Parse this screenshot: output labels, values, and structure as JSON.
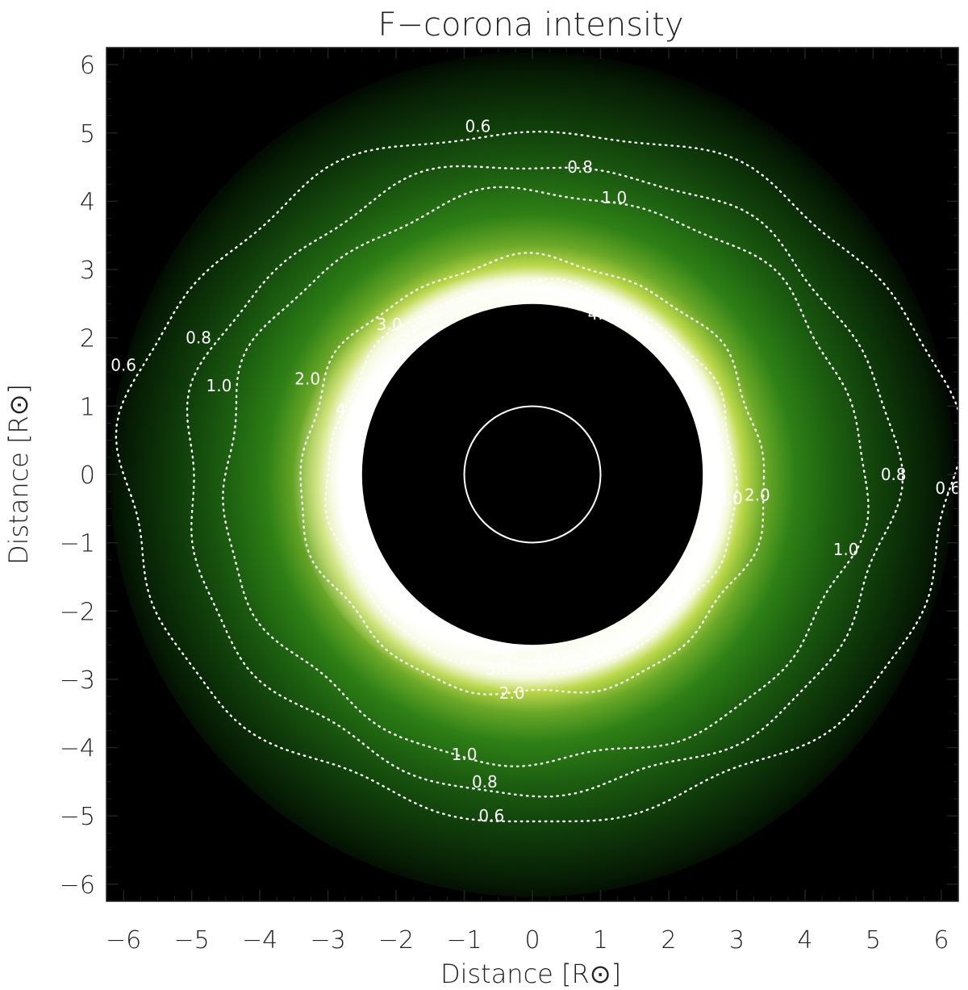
{
  "chart_data": {
    "type": "heatmap",
    "title": "F−corona intensity",
    "xlabel": "Distance [R⊙]",
    "ylabel": "Distance [R⊙]",
    "xlim": [
      -6.25,
      6.25
    ],
    "ylim": [
      -6.25,
      6.25
    ],
    "xticks": [
      -6,
      -5,
      -4,
      -3,
      -2,
      -1,
      0,
      1,
      2,
      3,
      4,
      5,
      6
    ],
    "yticks": [
      -6,
      -5,
      -4,
      -3,
      -2,
      -1,
      0,
      1,
      2,
      3,
      4,
      5,
      6
    ],
    "xtick_labels": [
      "−6",
      "−5",
      "−4",
      "−3",
      "−2",
      "−1",
      "0",
      "1",
      "2",
      "3",
      "4",
      "5",
      "6"
    ],
    "ytick_labels": [
      "−6",
      "−5",
      "−4",
      "−3",
      "−2",
      "−1",
      "0",
      "1",
      "2",
      "3",
      "4",
      "5",
      "6"
    ],
    "occulter_radius": 2.5,
    "field_of_view_radius": 6.2,
    "solar_disk_radius": 1.0,
    "colormap": [
      "#000000",
      "#0a3a06",
      "#1f6a12",
      "#4a9a1e",
      "#a8c83a",
      "#e8f0b0",
      "#ffffff"
    ],
    "contours": [
      {
        "level": 0.6,
        "label": "0.6",
        "label_positions": [
          [
            -0.8,
            5.1
          ],
          [
            -6.0,
            1.6
          ],
          [
            6.1,
            -0.2
          ],
          [
            -0.6,
            -5.0
          ]
        ],
        "outer_rx": 6.1,
        "outer_ry": 5.05,
        "cx": 0.1,
        "cy": 0.0
      },
      {
        "level": 0.8,
        "label": "0.8",
        "label_positions": [
          [
            0.7,
            4.5
          ],
          [
            -4.9,
            2.0
          ],
          [
            5.3,
            0.0
          ],
          [
            -0.7,
            -4.5
          ]
        ],
        "outer_rx": 5.2,
        "outer_ry": 4.6,
        "cx": 0.1,
        "cy": -0.05
      },
      {
        "level": 1.0,
        "label": "1.0",
        "label_positions": [
          [
            1.2,
            4.05
          ],
          [
            -4.6,
            1.3
          ],
          [
            4.6,
            -1.1
          ],
          [
            -1.0,
            -4.1
          ]
        ],
        "outer_rx": 4.7,
        "outer_ry": 4.18,
        "cx": 0.15,
        "cy": -0.05
      },
      {
        "level": 2.0,
        "label": "2.0",
        "label_positions": [
          [
            -3.3,
            1.4
          ],
          [
            3.3,
            -0.3
          ],
          [
            -0.3,
            -3.2
          ]
        ],
        "outer_rx": 3.4,
        "outer_ry": 3.2,
        "cx": 0.0,
        "cy": -0.05
      },
      {
        "level": 3.0,
        "label": "3.0",
        "label_positions": [
          [
            -2.1,
            2.2
          ],
          [
            2.9,
            -0.35
          ],
          [
            -0.5,
            -2.85
          ]
        ],
        "outer_rx": 3.0,
        "outer_ry": 2.85,
        "cx": 0.0,
        "cy": -0.05
      },
      {
        "level": 4.0,
        "label": "4.0",
        "label_positions": [
          [
            1.0,
            2.35
          ],
          [
            -2.7,
            0.95
          ],
          [
            0.2,
            -2.7
          ]
        ],
        "outer_rx": 2.75,
        "outer_ry": 2.65,
        "cx": 0.0,
        "cy": -0.05
      }
    ]
  }
}
